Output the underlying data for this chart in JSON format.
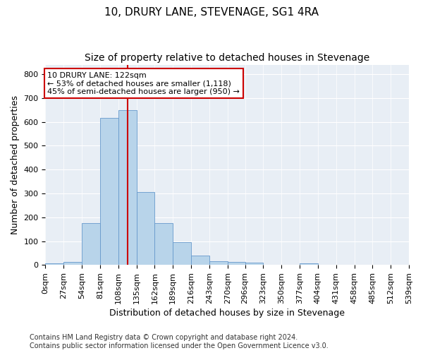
{
  "title": "10, DRURY LANE, STEVENAGE, SG1 4RA",
  "subtitle": "Size of property relative to detached houses in Stevenage",
  "xlabel": "Distribution of detached houses by size in Stevenage",
  "ylabel": "Number of detached properties",
  "bar_color": "#b8d4ea",
  "bar_edge_color": "#6699cc",
  "background_color": "#e8eef5",
  "grid_color": "#ffffff",
  "bin_edges": [
    0,
    27,
    54,
    81,
    108,
    135,
    162,
    189,
    216,
    243,
    270,
    296,
    323,
    350,
    377,
    404,
    431,
    458,
    485,
    512,
    539
  ],
  "bar_heights": [
    8,
    13,
    175,
    617,
    650,
    305,
    175,
    97,
    40,
    15,
    12,
    10,
    0,
    0,
    8,
    0,
    0,
    0,
    0,
    0
  ],
  "red_line_x": 122,
  "annotation_text": "10 DRURY LANE: 122sqm\n← 53% of detached houses are smaller (1,118)\n45% of semi-detached houses are larger (950) →",
  "annotation_box_color": "#ffffff",
  "annotation_box_edge": "#cc0000",
  "red_line_color": "#cc0000",
  "ylim": [
    0,
    840
  ],
  "yticks": [
    0,
    100,
    200,
    300,
    400,
    500,
    600,
    700,
    800
  ],
  "footer_text": "Contains HM Land Registry data © Crown copyright and database right 2024.\nContains public sector information licensed under the Open Government Licence v3.0.",
  "title_fontsize": 11,
  "subtitle_fontsize": 10,
  "xlabel_fontsize": 9,
  "ylabel_fontsize": 9,
  "tick_fontsize": 8,
  "footer_fontsize": 7
}
